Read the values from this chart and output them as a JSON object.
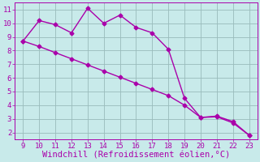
{
  "x": [
    9,
    10,
    11,
    12,
    13,
    14,
    15,
    16,
    17,
    18,
    19,
    20,
    21,
    22,
    23
  ],
  "y_jagged": [
    8.7,
    10.2,
    9.9,
    9.3,
    11.1,
    10.0,
    10.6,
    9.7,
    9.3,
    8.1,
    4.5,
    3.1,
    3.2,
    2.8,
    1.8
  ],
  "y_linear": [
    8.7,
    8.3,
    7.85,
    7.4,
    6.95,
    6.5,
    6.05,
    5.6,
    5.15,
    4.7,
    4.0,
    3.1,
    3.15,
    2.7,
    1.8
  ],
  "line_color": "#aa00aa",
  "bg_color": "#c8eaea",
  "grid_color": "#99bbbb",
  "xlabel": "Windchill (Refroidissement éolien,°C)",
  "xlim": [
    8.5,
    23.5
  ],
  "ylim": [
    1.5,
    11.5
  ],
  "xticks": [
    9,
    10,
    11,
    12,
    13,
    14,
    15,
    16,
    17,
    18,
    19,
    20,
    21,
    22,
    23
  ],
  "yticks": [
    2,
    3,
    4,
    5,
    6,
    7,
    8,
    9,
    10,
    11
  ],
  "marker": "D",
  "marker_size": 2.5,
  "line_width": 1.0,
  "xlabel_fontsize": 7.5,
  "tick_fontsize": 6.5,
  "xlabel_color": "#aa00aa",
  "tick_color": "#aa00aa",
  "spine_color": "#aa00aa"
}
